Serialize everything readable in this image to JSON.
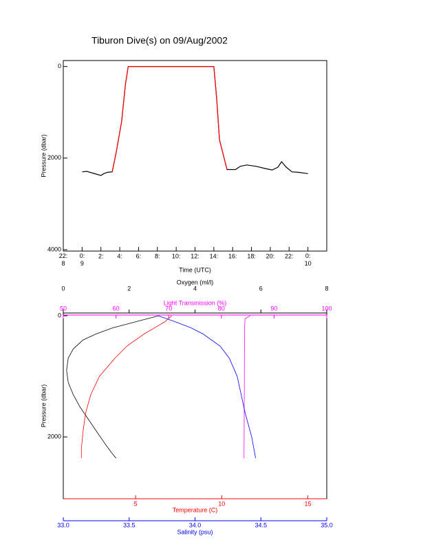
{
  "chart_data": [
    {
      "type": "line",
      "title": "Tiburon Dive(s) on 09/Aug/2002",
      "xlabel": "Time (UTC)",
      "ylabel": "Pressure (dbar)",
      "xlim": [
        -2,
        26
      ],
      "ylim": [
        -130,
        4030
      ],
      "y_inverted": true,
      "xticks": [
        {
          "value": -2,
          "label": "22:\n8"
        },
        {
          "value": 0,
          "label": "0:\n9"
        },
        {
          "value": 2,
          "label": "2:"
        },
        {
          "value": 4,
          "label": "4:"
        },
        {
          "value": 6,
          "label": "6:"
        },
        {
          "value": 8,
          "label": "8:"
        },
        {
          "value": 10,
          "label": "10:"
        },
        {
          "value": 12,
          "label": "12:"
        },
        {
          "value": 14,
          "label": "14:"
        },
        {
          "value": 16,
          "label": "16:"
        },
        {
          "value": 18,
          "label": "18:"
        },
        {
          "value": 20,
          "label": "20:"
        },
        {
          "value": 22,
          "label": "22:"
        },
        {
          "value": 24,
          "label": "0:\n10"
        }
      ],
      "yticks": [
        0,
        2000,
        4000
      ],
      "series": [
        {
          "color": "#000000",
          "x": [
            0,
            0.5,
            1,
            1.5,
            2,
            2.3,
            2.7,
            3.2,
            3.6,
            4.2,
            4.6,
            4.9,
            14,
            14.3,
            14.6,
            15.4,
            16.3,
            16.8,
            17.5,
            18.5,
            19.5,
            20.2,
            20.8,
            21.2,
            21.7,
            22.3,
            23,
            24
          ],
          "values": [
            2300,
            2290,
            2320,
            2350,
            2380,
            2340,
            2310,
            2300,
            1900,
            1200,
            400,
            0,
            0,
            700,
            1600,
            2250,
            2250,
            2180,
            2150,
            2180,
            2230,
            2260,
            2200,
            2080,
            2200,
            2300,
            2310,
            2340
          ]
        },
        {
          "color": "#ff0000",
          "x": [
            3.2,
            3.6,
            4.2,
            4.6,
            4.9,
            14,
            14.3,
            14.6,
            15.4
          ],
          "values": [
            2300,
            1900,
            1200,
            400,
            0,
            0,
            700,
            1600,
            2250
          ]
        }
      ]
    },
    {
      "type": "line",
      "ylabel": "Pressure (dbar)",
      "ylim": [
        -45,
        3020
      ],
      "yticks": [
        0,
        2000
      ],
      "y_inverted": true,
      "x_axes": [
        {
          "label": "Oxygen (ml/l)",
          "color": "#000000",
          "position": "top",
          "xlim": [
            0,
            8
          ],
          "xticks": [
            0,
            2,
            4,
            6,
            8
          ]
        },
        {
          "label": "Light Transmission (%)",
          "color": "#ff00ff",
          "position": "top-inner",
          "xlim": [
            50,
            100
          ],
          "xticks": [
            50,
            60,
            70,
            80,
            90,
            100
          ]
        },
        {
          "label": "Temperature (C)",
          "color": "#ff0000",
          "position": "bottom",
          "xlim": [
            0.8,
            16.1
          ],
          "xticks": [
            5,
            10,
            15
          ]
        },
        {
          "label": "Salinity (psu)",
          "color": "#0000ff",
          "position": "bottom-outer",
          "xlim": [
            33,
            35
          ],
          "xticks": [
            {
              "value": 33,
              "label": "33.0"
            },
            {
              "value": 33.5,
              "label": "33.5"
            },
            {
              "value": 34,
              "label": "34.0"
            },
            {
              "value": 34.5,
              "label": "34.5"
            },
            {
              "value": 35,
              "label": "35.0"
            }
          ]
        }
      ],
      "series": [
        {
          "color": "#000000",
          "axis": 0,
          "x": [
            2.9,
            2.2,
            1.5,
            1.0,
            0.6,
            0.3,
            0.15,
            0.1,
            0.15,
            0.3,
            0.5,
            0.75,
            1.0,
            1.25,
            1.45,
            1.6
          ],
          "values": [
            0,
            100,
            200,
            300,
            400,
            550,
            700,
            900,
            1100,
            1300,
            1500,
            1700,
            1900,
            2100,
            2250,
            2350
          ]
        },
        {
          "color": "#ff00ff",
          "axis": 1,
          "x": [
            85.5,
            84.5,
            84.4,
            84.3
          ],
          "values": [
            0,
            50,
            200,
            2350
          ]
        },
        {
          "color": "#ff0000",
          "axis": 2,
          "x": [
            7.1,
            6.7,
            6.1,
            5.5,
            5.0,
            4.5,
            3.8,
            2.9,
            2.4,
            2.1,
            1.95,
            1.85,
            1.85
          ],
          "values": [
            0,
            100,
            200,
            300,
            400,
            500,
            700,
            1000,
            1300,
            1600,
            1900,
            2200,
            2350
          ]
        },
        {
          "color": "#0000ff",
          "axis": 3,
          "x": [
            33.72,
            33.85,
            33.97,
            34.06,
            34.19,
            34.26,
            34.32,
            34.35,
            34.38,
            34.43,
            34.46
          ],
          "values": [
            0,
            100,
            200,
            300,
            500,
            700,
            1000,
            1300,
            1600,
            2000,
            2350
          ]
        }
      ]
    }
  ]
}
